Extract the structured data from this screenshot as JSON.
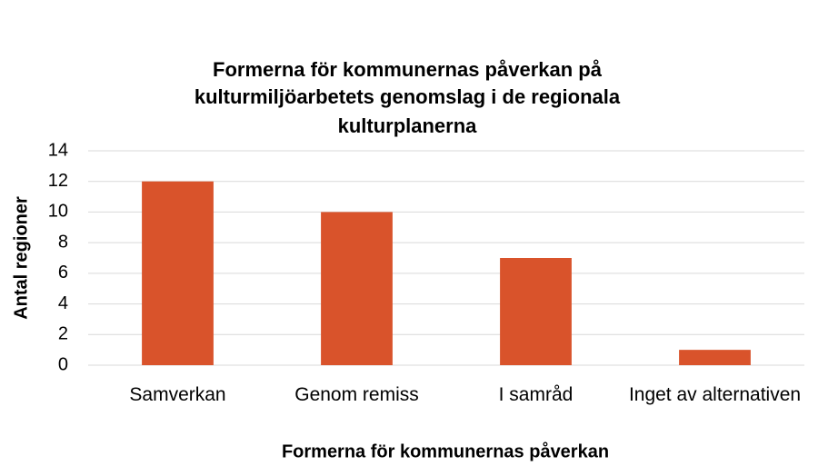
{
  "chart_data": {
    "type": "bar",
    "title": [
      "Formerna för kommunernas påverkan på",
      "kulturmiljöarbetets genomslag i de regionala",
      "kulturplanerna"
    ],
    "x_label": "Formerna för kommunernas påverkan",
    "y_label": "Antal regioner",
    "categories": [
      "Samverkan",
      "Genom remiss",
      "I samråd",
      "Inget av alternativen"
    ],
    "values": [
      12,
      10,
      7,
      1
    ],
    "color": "#d9532b",
    "ylim": [
      0,
      14
    ],
    "yticks": [
      0,
      2,
      4,
      6,
      8,
      10,
      12,
      14
    ],
    "grid": true
  }
}
